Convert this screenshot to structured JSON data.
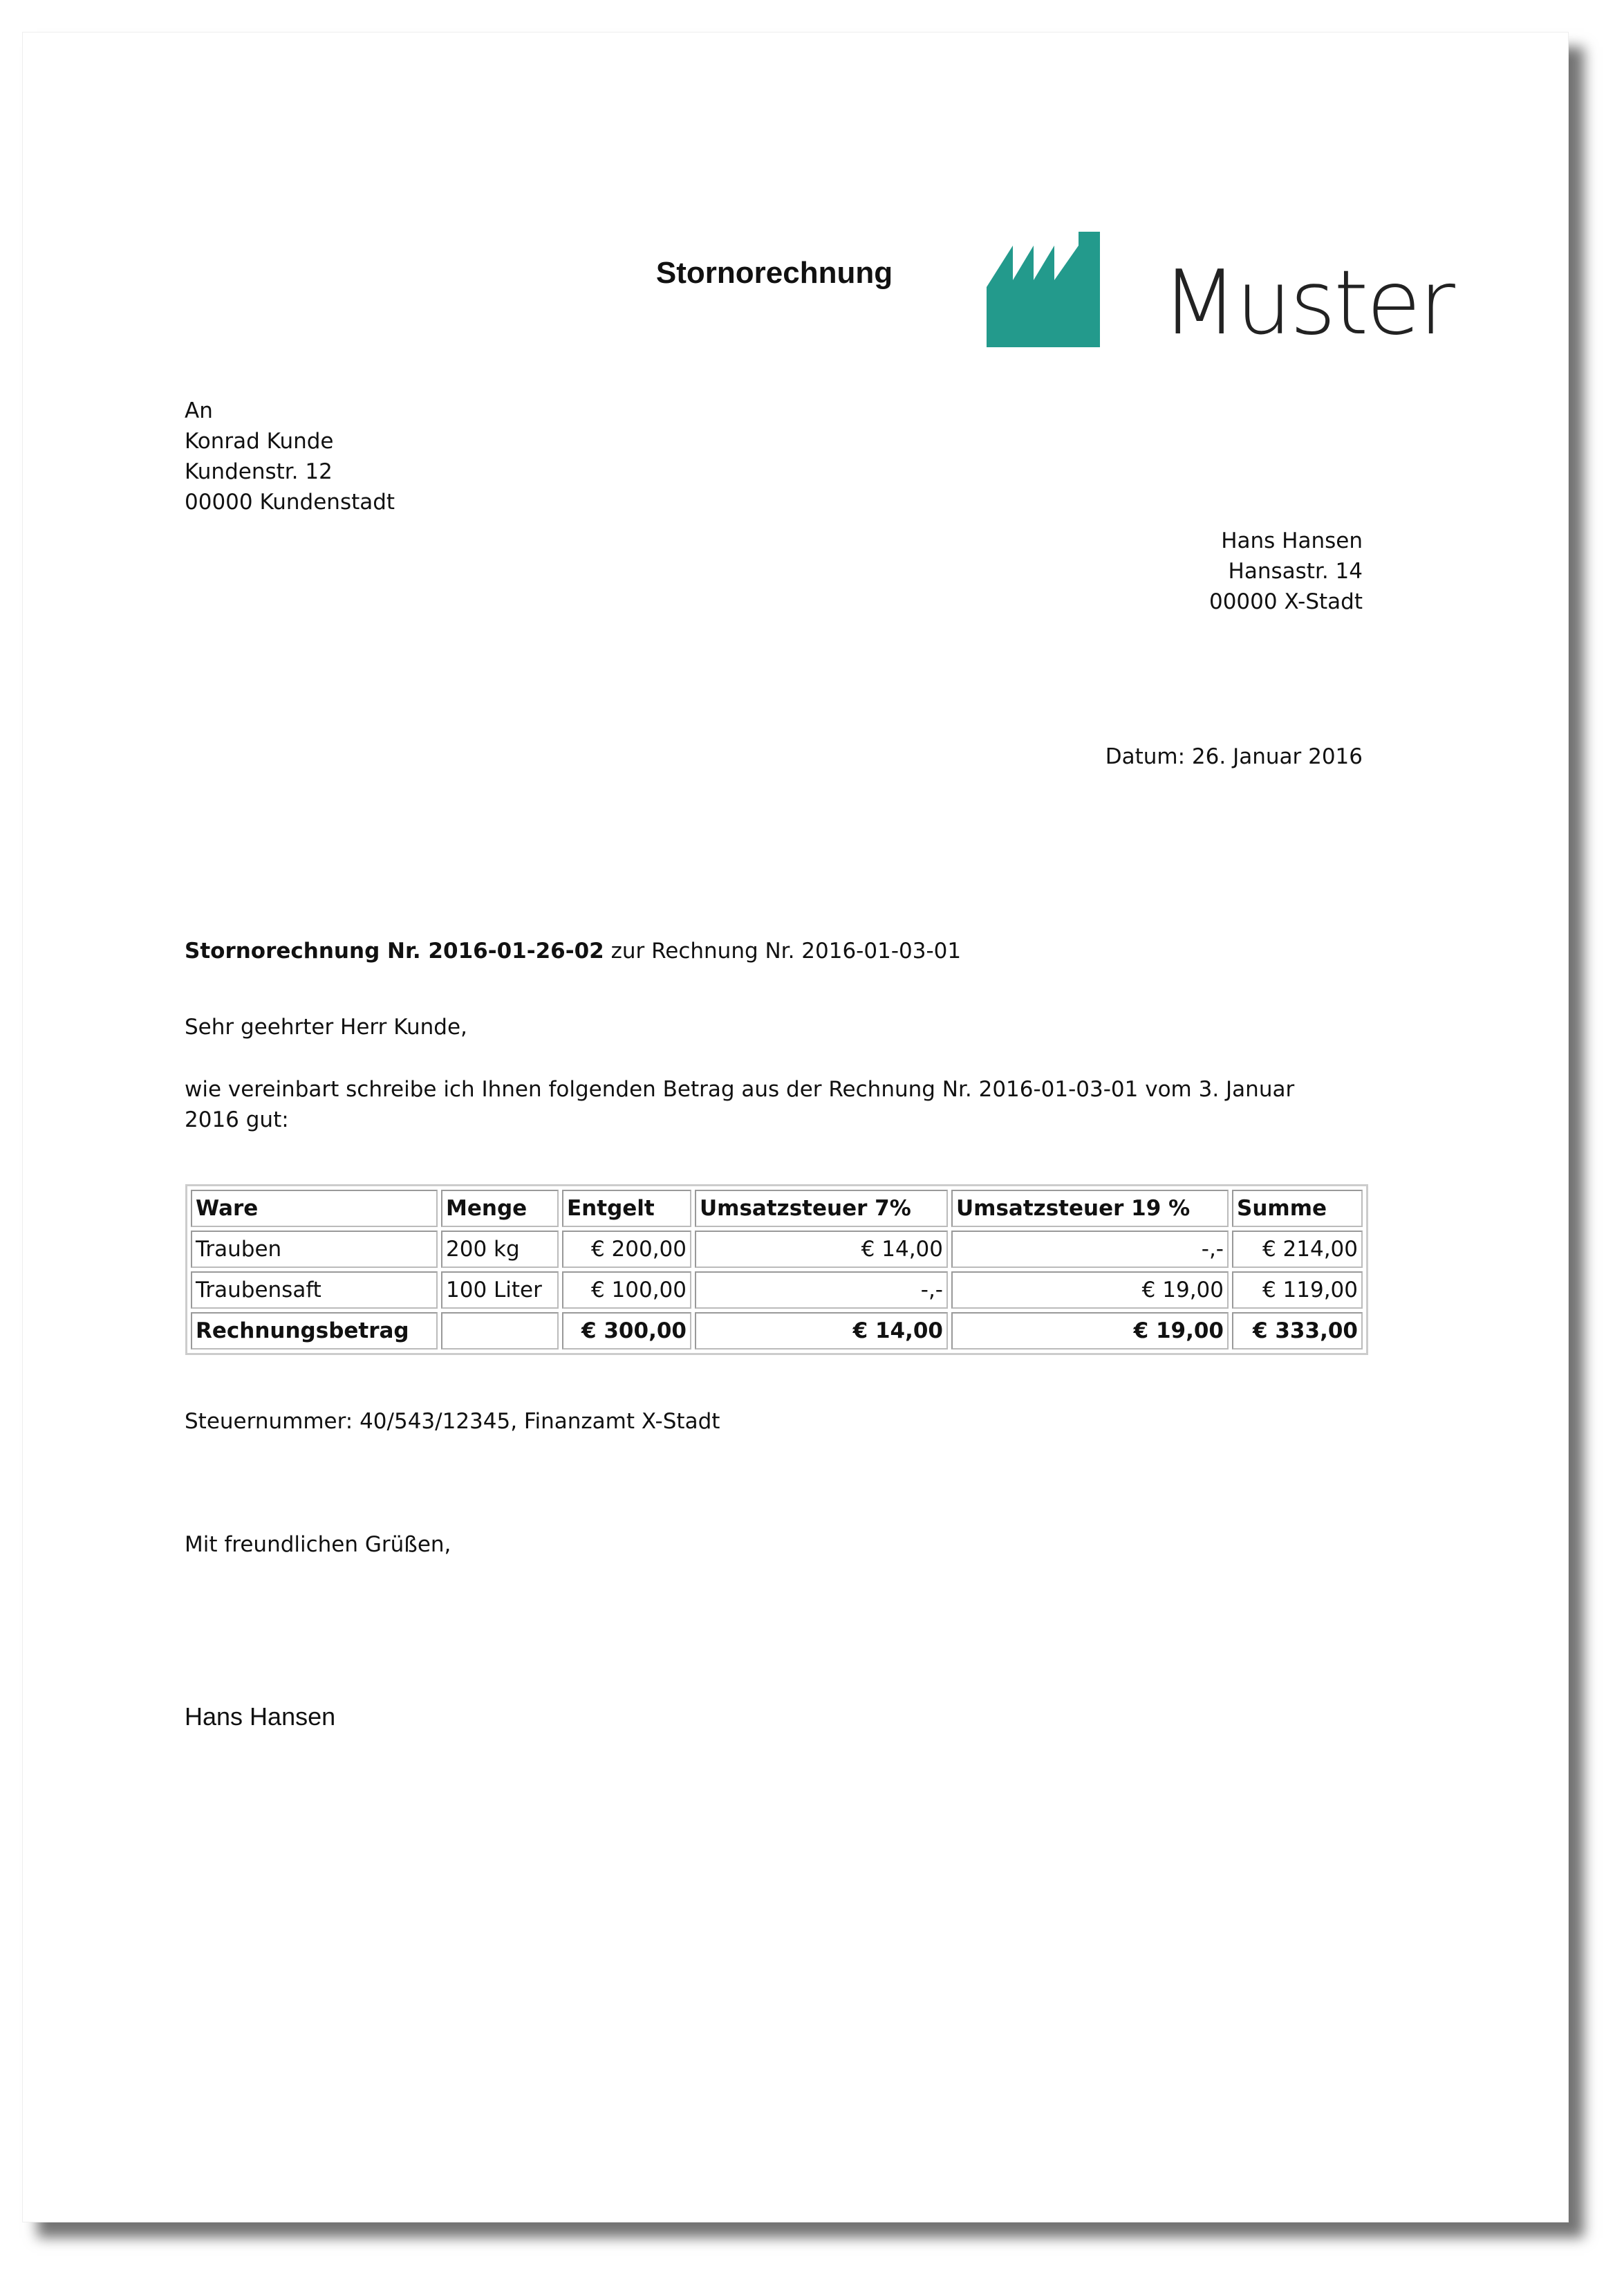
{
  "title": "Stornorechnung",
  "logo": {
    "text": "Muster",
    "color": "#239a8c"
  },
  "recipient": [
    "An",
    "Konrad Kunde",
    "Kundenstr. 12",
    "00000 Kundenstadt"
  ],
  "sender": [
    "Hans Hansen",
    "Hansastr. 14",
    "00000 X-Stadt"
  ],
  "date": "Datum: 26. Januar 2016",
  "subject": {
    "bold": "Stornorechnung Nr. 2016-01-26-02",
    "rest": " zur Rechnung Nr. 2016-01-03-01"
  },
  "salutation": "Sehr geehrter Herr Kunde,",
  "body": [
    "wie vereinbart schreibe ich Ihnen folgenden Betrag aus der Rechnung Nr. 2016-01-03-01 vom 3. Januar",
    "2016 gut:"
  ],
  "table": {
    "headers": [
      "Ware",
      "Menge",
      "Entgelt",
      "Umsatzsteuer 7%",
      "Umsatzsteuer 19 %",
      "Summe"
    ],
    "rows": [
      [
        "Trauben",
        "200 kg",
        "€ 200,00",
        "€ 14,00",
        "-,-",
        "€ 214,00"
      ],
      [
        "Traubensaft",
        "100 Liter",
        "€ 100,00",
        "-,-",
        "€ 19,00",
        "€ 119,00"
      ]
    ],
    "total": [
      "Rechnungsbetrag",
      "",
      "€ 300,00",
      "€ 14,00",
      "€ 19,00",
      "€ 333,00"
    ]
  },
  "tax": "Steuernummer: 40/543/12345, Finanzamt X-Stadt",
  "closing": "Mit freundlichen Grüßen,",
  "signature": "Hans Hansen"
}
